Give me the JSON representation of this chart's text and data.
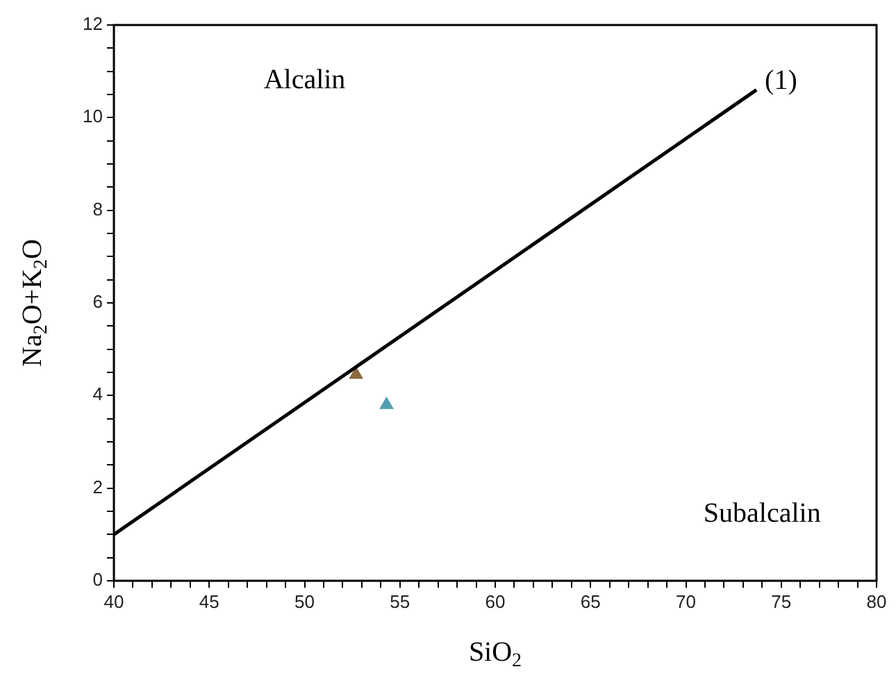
{
  "chart_data": {
    "type": "scatter",
    "xlabel": "SiO$_{2}$",
    "ylabel": "Na$_{2}$O+K$_{2}$O",
    "xlim": [
      40,
      80
    ],
    "ylim": [
      0,
      12
    ],
    "xticks": [
      40,
      {
        "value": 41,
        "label": null
      },
      {
        "value": 42,
        "label": null
      },
      {
        "value": 43,
        "label": null
      },
      {
        "value": 44,
        "label": null
      },
      45,
      {
        "value": 46,
        "label": null
      },
      {
        "value": 47,
        "label": null
      },
      {
        "value": 48,
        "label": null
      },
      {
        "value": 49,
        "label": null
      },
      50,
      {
        "value": 51,
        "label": null
      },
      {
        "value": 52,
        "label": null
      },
      {
        "value": 53,
        "label": null
      },
      {
        "value": 54,
        "label": null
      },
      55,
      {
        "value": 56,
        "label": null
      },
      {
        "value": 57,
        "label": null
      },
      {
        "value": 58,
        "label": null
      },
      {
        "value": 59,
        "label": null
      },
      60,
      {
        "value": 61,
        "label": null
      },
      {
        "value": 62,
        "label": null
      },
      {
        "value": 63,
        "label": null
      },
      {
        "value": 64,
        "label": null
      },
      65,
      {
        "value": 66,
        "label": null
      },
      {
        "value": 67,
        "label": null
      },
      {
        "value": 68,
        "label": null
      },
      {
        "value": 69,
        "label": null
      },
      70,
      {
        "value": 71,
        "label": null
      },
      {
        "value": 72,
        "label": null
      },
      {
        "value": 73,
        "label": null
      },
      {
        "value": 74,
        "label": null
      },
      75,
      {
        "value": 76,
        "label": null
      },
      {
        "value": 77,
        "label": null
      },
      {
        "value": 78,
        "label": null
      },
      {
        "value": 79,
        "label": null
      },
      80
    ],
    "yticks": [
      0,
      {
        "value": 0.5,
        "label": null
      },
      {
        "value": 1,
        "label": null
      },
      {
        "value": 1.5,
        "label": null
      },
      2,
      {
        "value": 2.5,
        "label": null
      },
      {
        "value": 3,
        "label": null
      },
      {
        "value": 3.5,
        "label": null
      },
      4,
      {
        "value": 4.5,
        "label": null
      },
      {
        "value": 5,
        "label": null
      },
      {
        "value": 5.5,
        "label": null
      },
      6,
      {
        "value": 6.5,
        "label": null
      },
      {
        "value": 7,
        "label": null
      },
      {
        "value": 7.5,
        "label": null
      },
      8,
      {
        "value": 8.5,
        "label": null
      },
      {
        "value": 9,
        "label": null
      },
      {
        "value": 9.5,
        "label": null
      },
      10,
      {
        "value": 10.5,
        "label": null
      },
      {
        "value": 11,
        "label": null
      },
      {
        "value": 11.5,
        "label": null
      },
      12
    ],
    "grid": false,
    "legend": false,
    "marker": "triangle",
    "series": [
      {
        "type": "line",
        "color": "#000000",
        "marker": "none",
        "x": [
          40,
          73.7
        ],
        "values": [
          1,
          10.6
        ]
      },
      {
        "color": "#8b6a3e",
        "x": [
          52.7
        ],
        "values": [
          4.45
        ]
      },
      {
        "color": "#4f9fb0",
        "x": [
          54.3
        ],
        "values": [
          3.8
        ]
      }
    ],
    "annotations": [
      {
        "text": "(1)",
        "x": 73.7,
        "y": 10.6
      },
      "Alcalin",
      "Subalcalin"
    ]
  }
}
